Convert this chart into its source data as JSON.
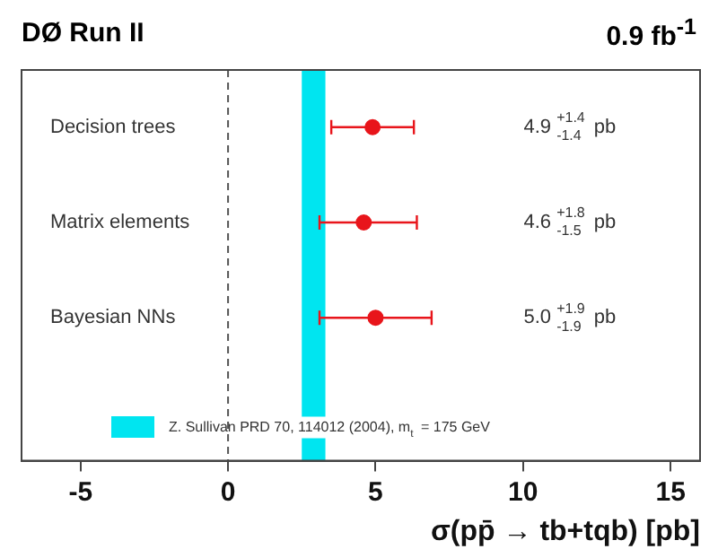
{
  "chart_data": {
    "type": "scatter",
    "orientation": "horizontal",
    "title": "DØ Run II",
    "subtitle": "0.9 fb$^{-1}$",
    "xlabel": "σ(pp̄ → tb+tqb) [pb]",
    "categories": [
      "Decision trees",
      "Matrix elements",
      "Bayesian NNs"
    ],
    "values": [
      4.9,
      4.6,
      5.0
    ],
    "errors": [
      [
        3.5,
        6.3
      ],
      [
        3.1,
        6.4
      ],
      [
        3.1,
        6.9
      ]
    ],
    "annotations": [
      "4.9 $^{+1.4}$$_{-1.4}$ pb",
      "4.6 $^{+1.8}$$_{-1.5}$ pb",
      "5.0 $^{+1.9}$$_{-1.9}$ pb"
    ],
    "color": "#e8151b",
    "marker": "circle",
    "xlim": [
      -7,
      16
    ],
    "xticks": [
      -5,
      0,
      5,
      10,
      15
    ],
    "grid": false,
    "ref_lines": [
      {
        "axis": "x",
        "value": 0,
        "line_style": "dashed",
        "color": "#555555"
      }
    ],
    "bands": [
      {
        "axis": "x",
        "from": 2.5,
        "to": 3.3,
        "label": "Z. Sullivan PRD 70, 114012 (2004), m$_{t}$ = 175 GeV",
        "color": "#00e5f0"
      }
    ]
  }
}
